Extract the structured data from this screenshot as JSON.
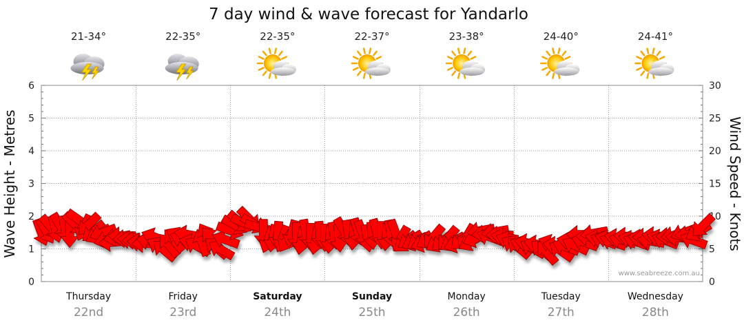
{
  "chart_data": {
    "type": "scatter",
    "title": "7 day wind & wave forecast for Yandarlo",
    "ylabel": "Wave Height - Metres",
    "y2label": "Wind Speed - Knots",
    "ylim": [
      0,
      6
    ],
    "y2lim": [
      0,
      30
    ],
    "yticks": [
      "0",
      "1",
      "2",
      "3",
      "4",
      "5",
      "6"
    ],
    "y2ticks": [
      "0",
      "5",
      "10",
      "15",
      "20",
      "25",
      "30"
    ],
    "days": [
      {
        "name": "Thursday",
        "date": "22nd",
        "temp": "21-34°",
        "icon": "storm-cloud-icon",
        "bold": false
      },
      {
        "name": "Friday",
        "date": "23rd",
        "temp": "22-35°",
        "icon": "storm-cloud-icon",
        "bold": false
      },
      {
        "name": "Saturday",
        "date": "24th",
        "temp": "22-35°",
        "icon": "partly-cloudy-icon",
        "bold": true
      },
      {
        "name": "Sunday",
        "date": "25th",
        "temp": "22-37°",
        "icon": "partly-cloudy-icon",
        "bold": true
      },
      {
        "name": "Monday",
        "date": "26th",
        "temp": "23-38°",
        "icon": "partly-cloudy-icon",
        "bold": false
      },
      {
        "name": "Tuesday",
        "date": "27th",
        "temp": "24-40°",
        "icon": "partly-cloudy-icon",
        "bold": false
      },
      {
        "name": "Wednesday",
        "date": "28th",
        "temp": "24-41°",
        "icon": "partly-cloudy-icon",
        "bold": false
      }
    ],
    "series": [
      {
        "name": "Wind",
        "color": "#ff0000",
        "points": [
          [
            0.0,
            7.5,
            70
          ],
          [
            0.05,
            7.7,
            60
          ],
          [
            0.1,
            8.3,
            50
          ],
          [
            0.15,
            8.0,
            75
          ],
          [
            0.2,
            8.5,
            60
          ],
          [
            0.25,
            8.0,
            80
          ],
          [
            0.3,
            7.3,
            90
          ],
          [
            0.35,
            8.8,
            45
          ],
          [
            0.4,
            9.4,
            35
          ],
          [
            0.45,
            8.2,
            115
          ],
          [
            0.5,
            8.7,
            135
          ],
          [
            0.55,
            7.6,
            140
          ],
          [
            0.6,
            7.2,
            150
          ],
          [
            0.65,
            7.5,
            160
          ],
          [
            0.7,
            6.4,
            165
          ],
          [
            0.75,
            6.0,
            175
          ],
          [
            0.8,
            6.8,
            170
          ],
          [
            0.85,
            7.0,
            180
          ],
          [
            0.9,
            6.6,
            175
          ],
          [
            0.95,
            6.4,
            185
          ],
          [
            1.0,
            6.3,
            180
          ],
          [
            1.05,
            6.0,
            185
          ],
          [
            1.1,
            5.8,
            180
          ],
          [
            1.15,
            6.2,
            190
          ],
          [
            1.2,
            6.8,
            200
          ],
          [
            1.25,
            5.4,
            210
          ],
          [
            1.3,
            4.8,
            220
          ],
          [
            1.35,
            5.6,
            230
          ],
          [
            1.4,
            6.3,
            230
          ],
          [
            1.45,
            6.9,
            210
          ],
          [
            1.5,
            6.5,
            200
          ],
          [
            1.55,
            7.2,
            190
          ],
          [
            1.6,
            5.9,
            195
          ],
          [
            1.65,
            5.4,
            210
          ],
          [
            1.7,
            6.0,
            250
          ],
          [
            1.75,
            7.0,
            240
          ],
          [
            1.8,
            6.6,
            230
          ],
          [
            1.85,
            5.2,
            220
          ],
          [
            1.9,
            4.9,
            210
          ],
          [
            1.95,
            6.4,
            200
          ],
          [
            2.0,
            7.8,
            20
          ],
          [
            2.05,
            8.6,
            30
          ],
          [
            2.1,
            9.1,
            40
          ],
          [
            2.15,
            8.9,
            25
          ],
          [
            2.2,
            9.6,
            45
          ],
          [
            2.25,
            8.8,
            30
          ],
          [
            2.3,
            8.3,
            15
          ],
          [
            2.35,
            7.4,
            90
          ],
          [
            2.4,
            6.4,
            110
          ],
          [
            2.45,
            6.6,
            100
          ],
          [
            2.5,
            7.1,
            95
          ],
          [
            2.55,
            6.5,
            110
          ],
          [
            2.6,
            6.4,
            120
          ],
          [
            2.65,
            7.3,
            105
          ],
          [
            2.7,
            6.9,
            90
          ],
          [
            2.75,
            6.2,
            100
          ],
          [
            2.8,
            7.4,
            80
          ],
          [
            2.85,
            6.8,
            90
          ],
          [
            2.9,
            6.2,
            100
          ],
          [
            2.95,
            7.1,
            85
          ],
          [
            3.0,
            6.7,
            90
          ],
          [
            3.05,
            6.4,
            95
          ],
          [
            3.1,
            7.0,
            80
          ],
          [
            3.15,
            6.6,
            85
          ],
          [
            3.2,
            7.8,
            60
          ],
          [
            3.25,
            7.3,
            80
          ],
          [
            3.3,
            6.9,
            95
          ],
          [
            3.35,
            7.6,
            75
          ],
          [
            3.4,
            7.3,
            70
          ],
          [
            3.45,
            6.6,
            80
          ],
          [
            3.5,
            7.0,
            85
          ],
          [
            3.55,
            7.5,
            75
          ],
          [
            3.6,
            7.1,
            90
          ],
          [
            3.65,
            6.8,
            95
          ],
          [
            3.7,
            7.3,
            80
          ],
          [
            3.75,
            7.4,
            70
          ],
          [
            3.8,
            6.5,
            120
          ],
          [
            3.85,
            6.0,
            140
          ],
          [
            3.9,
            6.3,
            150
          ],
          [
            3.95,
            6.1,
            155
          ],
          [
            4.0,
            6.2,
            150
          ],
          [
            4.05,
            5.9,
            160
          ],
          [
            4.1,
            6.4,
            150
          ],
          [
            4.15,
            6.8,
            130
          ],
          [
            4.2,
            5.9,
            150
          ],
          [
            4.25,
            6.2,
            140
          ],
          [
            4.3,
            6.6,
            130
          ],
          [
            4.35,
            6.0,
            150
          ],
          [
            4.4,
            5.8,
            160
          ],
          [
            4.45,
            6.4,
            140
          ],
          [
            4.5,
            6.8,
            120
          ],
          [
            4.55,
            6.1,
            150
          ],
          [
            4.6,
            6.6,
            160
          ],
          [
            4.65,
            7.8,
            170
          ],
          [
            4.7,
            7.3,
            175
          ],
          [
            4.75,
            6.8,
            200
          ],
          [
            4.8,
            7.6,
            170
          ],
          [
            4.85,
            7.1,
            180
          ],
          [
            4.9,
            6.8,
            190
          ],
          [
            4.95,
            6.3,
            200
          ],
          [
            5.0,
            5.6,
            210
          ],
          [
            5.05,
            5.2,
            220
          ],
          [
            5.1,
            5.6,
            200
          ],
          [
            5.15,
            5.9,
            190
          ],
          [
            5.2,
            5.1,
            210
          ],
          [
            5.25,
            5.7,
            190
          ],
          [
            5.3,
            4.8,
            220
          ],
          [
            5.35,
            4.5,
            230
          ],
          [
            5.4,
            5.8,
            200
          ],
          [
            5.45,
            5.5,
            190
          ],
          [
            5.5,
            4.7,
            215
          ],
          [
            5.55,
            5.3,
            200
          ],
          [
            5.6,
            6.2,
            190
          ],
          [
            5.65,
            5.5,
            205
          ],
          [
            5.7,
            7.2,
            180
          ],
          [
            5.75,
            6.0,
            200
          ],
          [
            5.8,
            6.8,
            185
          ],
          [
            5.85,
            7.4,
            170
          ],
          [
            5.9,
            6.6,
            190
          ],
          [
            5.95,
            6.3,
            200
          ],
          [
            6.0,
            6.5,
            195
          ],
          [
            6.05,
            6.1,
            200
          ],
          [
            6.1,
            6.7,
            190
          ],
          [
            6.15,
            6.3,
            195
          ],
          [
            6.2,
            6.9,
            185
          ],
          [
            6.25,
            6.4,
            195
          ],
          [
            6.3,
            6.1,
            200
          ],
          [
            6.35,
            6.6,
            190
          ],
          [
            6.4,
            6.8,
            180
          ],
          [
            6.45,
            6.2,
            190
          ],
          [
            6.5,
            7.0,
            185
          ],
          [
            6.55,
            6.6,
            195
          ],
          [
            6.6,
            6.3,
            200
          ],
          [
            6.65,
            6.9,
            180
          ],
          [
            6.7,
            7.1,
            170
          ],
          [
            6.75,
            6.7,
            185
          ],
          [
            6.8,
            7.5,
            160
          ],
          [
            6.85,
            7.2,
            175
          ],
          [
            6.9,
            6.3,
            200
          ],
          [
            6.95,
            7.6,
            150
          ],
          [
            7.0,
            8.5,
            135
          ]
        ]
      }
    ],
    "watermark": "www.seabreeze.com.au"
  }
}
